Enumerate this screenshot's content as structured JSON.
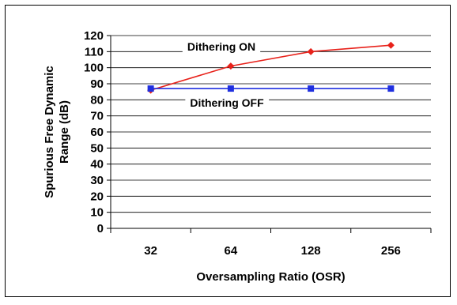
{
  "chart_data": {
    "type": "line",
    "categories": [
      "32",
      "64",
      "128",
      "256"
    ],
    "series": [
      {
        "name": "Dithering ON",
        "values": [
          86,
          101,
          110,
          114
        ],
        "color": "#e8221b",
        "marker": "diamond"
      },
      {
        "name": "Dithering OFF",
        "values": [
          87,
          87,
          87,
          87
        ],
        "color": "#1f2fe0",
        "marker": "square"
      }
    ],
    "title": "",
    "xlabel": "Oversampling Ratio (OSR)",
    "ylabel_lines": [
      "Spurious Free Dynamic",
      "Range (dB)"
    ],
    "ylim": [
      0,
      120
    ],
    "yticks": [
      0,
      10,
      20,
      30,
      40,
      50,
      60,
      70,
      80,
      90,
      100,
      110,
      120
    ],
    "grid": "horizontal",
    "legend": "none",
    "annotations": [
      "Dithering ON",
      "Dithering OFF"
    ]
  }
}
